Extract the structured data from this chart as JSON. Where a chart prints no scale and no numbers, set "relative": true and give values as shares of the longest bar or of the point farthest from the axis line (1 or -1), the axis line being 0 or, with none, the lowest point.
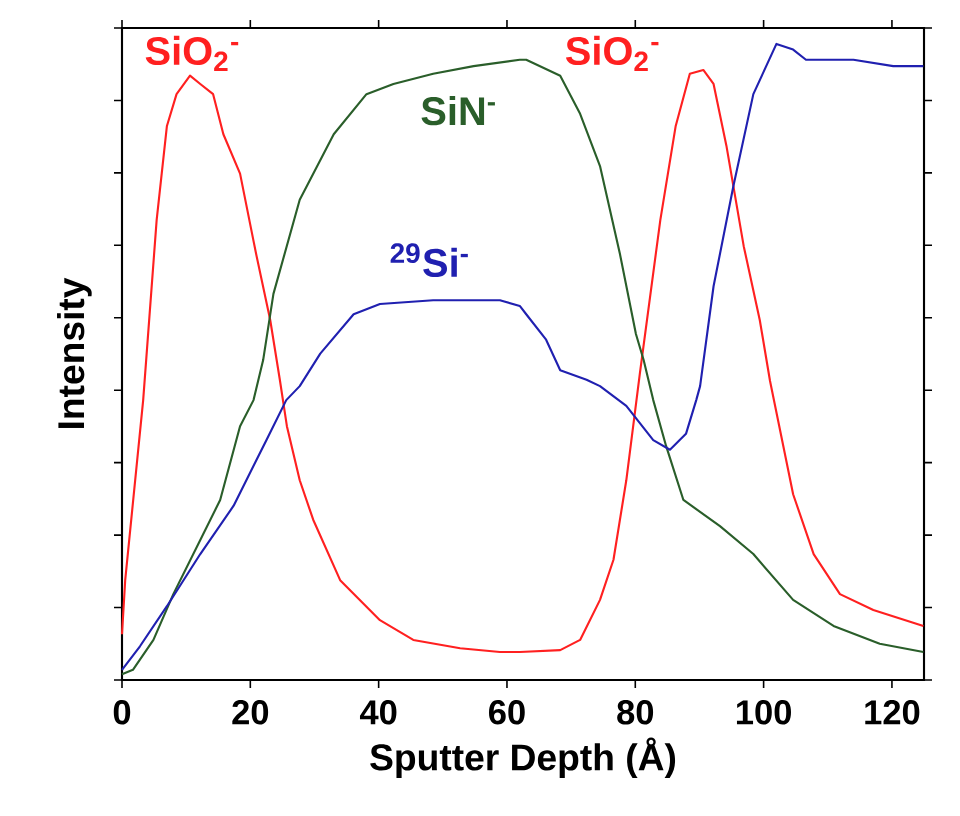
{
  "chart_data": {
    "type": "line",
    "relative": true,
    "xlabel": "Sputter Depth (Å)",
    "ylabel": "Intensity",
    "xlim": [
      0,
      125
    ],
    "xticks": [
      0,
      20,
      40,
      60,
      80,
      100,
      120
    ],
    "grid": false,
    "marker": "none",
    "line_style": "solid",
    "annotations": [
      "SiO$_{2}$$^{-}$"
    ],
    "series": [
      {
        "name": "SiO$_{2}$$^{-}$",
        "color": "#ff2020",
        "x": [
          0,
          0.5,
          3.3,
          5.4,
          7.0,
          8.5,
          10.6,
          12.2,
          14.2,
          15.8,
          18.4,
          20.9,
          23.1,
          24.6,
          25.7,
          27.7,
          29.8,
          34,
          40.2,
          45.4,
          52.7,
          58.9,
          62,
          68.3,
          71.4,
          74.5,
          76.6,
          78.6,
          80.7,
          83.9,
          86.3,
          88.5,
          90.6,
          92.2,
          94.2,
          96.9,
          99.4,
          101,
          104.6,
          107.8,
          111.9,
          117.1,
          124.9
        ],
        "values": [
          0.072,
          0.157,
          0.44,
          0.723,
          0.871,
          0.921,
          0.95,
          0.937,
          0.921,
          0.858,
          0.796,
          0.67,
          0.566,
          0.472,
          0.399,
          0.314,
          0.252,
          0.157,
          0.094,
          0.063,
          0.05,
          0.044,
          0.044,
          0.047,
          0.063,
          0.126,
          0.189,
          0.314,
          0.481,
          0.723,
          0.871,
          0.953,
          0.959,
          0.937,
          0.84,
          0.682,
          0.566,
          0.47,
          0.292,
          0.198,
          0.135,
          0.11,
          0.085
        ]
      },
      {
        "name": "SiN$^{-}$",
        "color": "#2a5e2a",
        "x": [
          0,
          1.7,
          4.9,
          8,
          12.2,
          15.3,
          18.4,
          20.5,
          22,
          23.6,
          27.7,
          33,
          38.1,
          42.3,
          48.5,
          54.8,
          62,
          63,
          68.3,
          71.4,
          74.5,
          77.6,
          80.1,
          81.3,
          82.8,
          84.8,
          87.5,
          93.2,
          98.4,
          104.6,
          110.9,
          118.1,
          124.9
        ],
        "values": [
          0.009,
          0.016,
          0.063,
          0.135,
          0.22,
          0.283,
          0.399,
          0.44,
          0.503,
          0.607,
          0.755,
          0.858,
          0.921,
          0.937,
          0.953,
          0.965,
          0.975,
          0.975,
          0.95,
          0.89,
          0.808,
          0.67,
          0.544,
          0.503,
          0.44,
          0.368,
          0.283,
          0.242,
          0.198,
          0.126,
          0.085,
          0.057,
          0.044
        ]
      },
      {
        "name": "$^{29}$Si$^{-}$",
        "color": "#2020b0",
        "x": [
          0,
          2.8,
          7,
          12.2,
          17.4,
          22.5,
          25.6,
          27.7,
          30.9,
          36.1,
          40.2,
          48.5,
          58.9,
          62,
          63,
          66.1,
          68.3,
          72.4,
          74.5,
          78.6,
          82.8,
          85.4,
          87.9,
          89.5,
          90.1,
          92.2,
          95.3,
          98.4,
          102,
          104.6,
          106.6,
          114,
          120.2,
          124.9
        ],
        "values": [
          0.016,
          0.053,
          0.116,
          0.198,
          0.274,
          0.377,
          0.44,
          0.462,
          0.513,
          0.575,
          0.591,
          0.597,
          0.597,
          0.588,
          0.575,
          0.535,
          0.487,
          0.472,
          0.462,
          0.431,
          0.377,
          0.362,
          0.387,
          0.44,
          0.462,
          0.619,
          0.777,
          0.921,
          1.0,
          0.991,
          0.975,
          0.975,
          0.965,
          0.965
        ]
      }
    ]
  }
}
